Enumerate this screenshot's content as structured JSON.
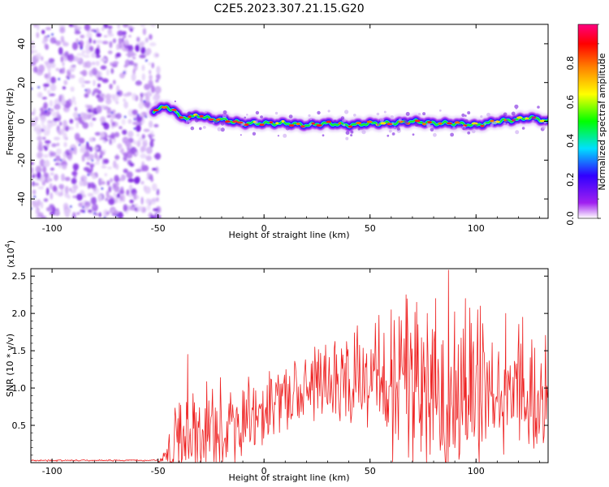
{
  "title": "C2E5.2023.307.21.15.G20",
  "chart_data": [
    {
      "type": "heatmap",
      "xlabel": "Height of straight line (km)",
      "ylabel": "Frequency (Hz)",
      "xlim": [
        -110,
        134
      ],
      "ylim": [
        -50,
        50
      ],
      "xticks": [
        -100,
        -50,
        0,
        50,
        100
      ],
      "yticks": [
        -40,
        -20,
        0,
        20,
        40
      ],
      "colorbar": {
        "label": "Normalized spectral amplitude",
        "range": [
          0,
          1
        ],
        "ticks": [
          "0.0",
          "0.2",
          "0.4",
          "0.6",
          "0.8"
        ],
        "colormap": [
          "#ffffff",
          "#a020f0",
          "#3000ff",
          "#00e0ff",
          "#00ff00",
          "#ffff00",
          "#ff8000",
          "#ff0000",
          "#ff0080"
        ]
      },
      "noise_region_x": [
        -110,
        -52
      ],
      "ridge": {
        "x": [
          -52,
          -50,
          -46,
          -42,
          -40,
          -36,
          -30,
          -25,
          -20,
          -15,
          -10,
          -5,
          0,
          10,
          20,
          30,
          40,
          50,
          60,
          70,
          80,
          90,
          100,
          110,
          120,
          125,
          130,
          134
        ],
        "freq": [
          5,
          7,
          7,
          6,
          2,
          2,
          3,
          1,
          1,
          0,
          -1,
          -1,
          -1,
          -1,
          -2,
          -1,
          -2,
          -1,
          -1,
          0,
          -1,
          -1,
          -2,
          0,
          1,
          2,
          1,
          0
        ]
      }
    },
    {
      "type": "line",
      "xlabel": "Height of straight line (km)",
      "ylabel": "SNR (10 * v/v)",
      "scale_label": "(x10",
      "scale_exponent": "4",
      "xlim": [
        -110,
        134
      ],
      "ylim": [
        0,
        2.6
      ],
      "xticks": [
        -100,
        -50,
        0,
        50,
        100
      ],
      "yticks": [
        "0.5",
        "1.0",
        "1.5",
        "2.0",
        "2.5"
      ],
      "color": "#ee2020",
      "envelope": {
        "x": [
          -110,
          -50,
          -46,
          -44,
          -40,
          -36,
          -30,
          -20,
          -10,
          0,
          10,
          20,
          30,
          40,
          50,
          60,
          70,
          80,
          90,
          100,
          110,
          120,
          134
        ],
        "base": [
          0.03,
          0.03,
          0.06,
          0.15,
          0.2,
          0.3,
          0.35,
          0.45,
          0.6,
          0.75,
          0.9,
          1.0,
          1.05,
          1.1,
          1.1,
          1.05,
          0.95,
          0.9,
          0.9,
          0.9,
          0.9,
          0.95,
          1.0
        ],
        "amp": [
          0.008,
          0.008,
          0.1,
          0.28,
          0.45,
          0.55,
          0.5,
          0.5,
          0.4,
          0.35,
          0.35,
          0.35,
          0.4,
          0.45,
          0.55,
          0.75,
          0.85,
          0.9,
          0.85,
          0.8,
          0.7,
          0.6,
          0.55
        ]
      },
      "peaks": [
        {
          "x": -36,
          "y": 1.45
        },
        {
          "x": 60,
          "y": 2.05
        },
        {
          "x": 67,
          "y": 2.25
        },
        {
          "x": 72,
          "y": 2.15
        },
        {
          "x": 77,
          "y": 2.0
        },
        {
          "x": 81,
          "y": 2.2
        },
        {
          "x": 87,
          "y": 2.58
        },
        {
          "x": 95,
          "y": 2.2
        },
        {
          "x": 102,
          "y": 2.1
        },
        {
          "x": 114,
          "y": 2.0
        },
        {
          "x": 122,
          "y": 1.95
        }
      ],
      "troughs": [
        {
          "x": 74,
          "y": 0.15
        },
        {
          "x": 90,
          "y": 0.2
        }
      ]
    }
  ]
}
